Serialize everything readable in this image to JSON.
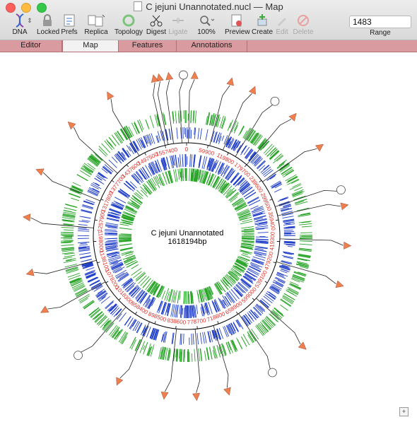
{
  "window": {
    "title": "C jejuni Unannotated.nucl — Map"
  },
  "toolbar": {
    "dna": "DNA",
    "locked": "Locked",
    "prefs": "Prefs",
    "replica": "Replica",
    "topology": "Topology",
    "digest": "Digest",
    "ligate": "Ligate",
    "zoom": "100%",
    "preview": "Preview",
    "create": "Create",
    "edit": "Edit",
    "delete": "Delete",
    "range_value": "1483",
    "range_label": "Range"
  },
  "tabs": [
    "Editor",
    "Map",
    "Features",
    "Annotations"
  ],
  "map": {
    "name": "C jejuni Unannotated",
    "length": "1618194bp",
    "ticks": [
      "0",
      "59900",
      "119800",
      "179700",
      "239600",
      "299500",
      "359400",
      "419300",
      "479200",
      "539100",
      "599000",
      "658900",
      "718800",
      "778700",
      "838600",
      "898500",
      "958400",
      "1018300",
      "1078200",
      "1138100",
      "1198000",
      "1257900",
      "1317800",
      "1377700",
      "1437600",
      "1497500",
      "1557400"
    ],
    "colors": {
      "forward": "#2aa52a",
      "reverse": "#2240c8",
      "tick_label": "#e0302a",
      "orf_marker": "#f07f50"
    }
  }
}
